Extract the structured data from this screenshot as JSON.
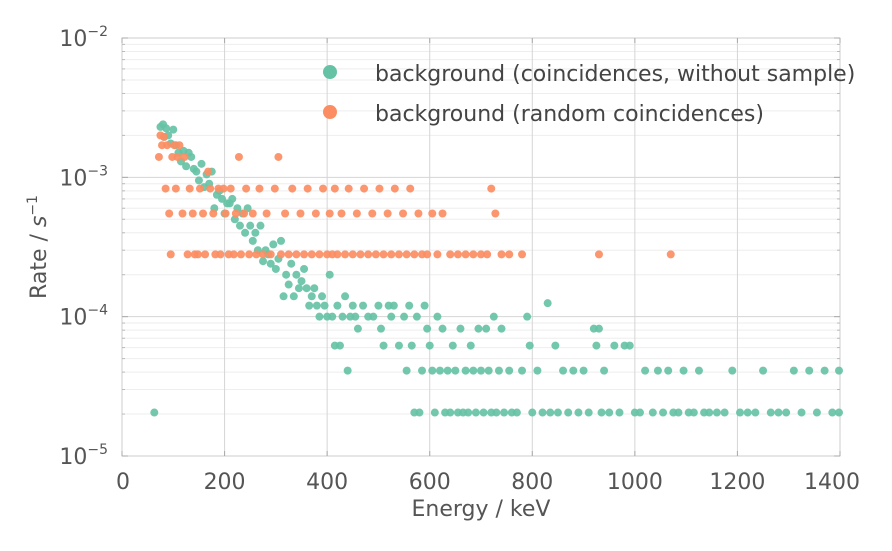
{
  "chart_data": {
    "type": "scatter",
    "xlabel": "Energy / keV",
    "ylabel_base": "Rate / ",
    "ylabel_unit": "s",
    "ylabel_exp": "−1",
    "xlim": [
      0,
      1400
    ],
    "ylim": [
      1e-05,
      0.01
    ],
    "yscale": "log",
    "grid": true,
    "legend_position": "top-right",
    "x_ticks": [
      0,
      200,
      400,
      600,
      800,
      1000,
      1200,
      1400
    ],
    "y_ticks": [
      {
        "value": 0.01,
        "base": "10",
        "exp": "−2"
      },
      {
        "value": 0.001,
        "base": "10",
        "exp": "−3"
      },
      {
        "value": 0.0001,
        "base": "10",
        "exp": "−4"
      },
      {
        "value": 1e-05,
        "base": "10",
        "exp": "−5"
      }
    ],
    "series": [
      {
        "name": "background (coincidences, without sample)",
        "color": "#66c2a5",
        "points": [
          [
            63,
            2.05e-05
          ],
          [
            75,
            0.0023
          ],
          [
            80,
            0.0024
          ],
          [
            82,
            0.00195
          ],
          [
            86,
            0.00225
          ],
          [
            90,
            0.002
          ],
          [
            95,
            0.00175
          ],
          [
            100,
            0.0022
          ],
          [
            105,
            0.0017
          ],
          [
            110,
            0.0015
          ],
          [
            115,
            0.0013
          ],
          [
            120,
            0.00155
          ],
          [
            125,
            0.0012
          ],
          [
            130,
            0.0015
          ],
          [
            135,
            0.0014
          ],
          [
            140,
            0.00115
          ],
          [
            145,
            0.0011
          ],
          [
            150,
            0.00095
          ],
          [
            155,
            0.00125
          ],
          [
            160,
            0.00085
          ],
          [
            165,
            0.00105
          ],
          [
            170,
            0.0009
          ],
          [
            175,
            0.0011
          ],
          [
            180,
            0.0006
          ],
          [
            185,
            0.00075
          ],
          [
            190,
            0.0008
          ],
          [
            195,
            0.0007
          ],
          [
            200,
            0.00055
          ],
          [
            205,
            0.00065
          ],
          [
            210,
            0.00065
          ],
          [
            215,
            0.0007
          ],
          [
            220,
            0.0005
          ],
          [
            225,
            0.0006
          ],
          [
            230,
            0.00045
          ],
          [
            235,
            0.00055
          ],
          [
            240,
            0.0004
          ],
          [
            245,
            0.0006
          ],
          [
            250,
            0.00045
          ],
          [
            255,
            0.00035
          ],
          [
            260,
            0.0004
          ],
          [
            265,
            0.0003
          ],
          [
            270,
            0.00045
          ],
          [
            275,
            0.00025
          ],
          [
            280,
            0.0003
          ],
          [
            285,
            0.00028
          ],
          [
            290,
            0.00024
          ],
          [
            295,
            0.00033
          ],
          [
            300,
            0.00022
          ],
          [
            305,
            0.00026
          ],
          [
            310,
            0.00035
          ],
          [
            315,
            0.00014
          ],
          [
            320,
            0.0002
          ],
          [
            325,
            0.00017
          ],
          [
            330,
            0.00024
          ],
          [
            335,
            0.00014
          ],
          [
            340,
            0.0002
          ],
          [
            345,
            0.00016
          ],
          [
            350,
            0.00018
          ],
          [
            355,
            0.00022
          ],
          [
            360,
            0.00016
          ],
          [
            365,
            0.00012
          ],
          [
            370,
            0.00014
          ],
          [
            375,
            0.00016
          ],
          [
            380,
            0.00012
          ],
          [
            385,
            0.0001
          ],
          [
            390,
            0.00014
          ],
          [
            395,
            0.00012
          ],
          [
            400,
            0.0001
          ],
          [
            405,
            0.0002
          ],
          [
            410,
            0.0001
          ],
          [
            415,
            6.2e-05
          ],
          [
            420,
            0.00012
          ],
          [
            425,
            6.2e-05
          ],
          [
            430,
            0.0001
          ],
          [
            435,
            0.00014
          ],
          [
            440,
            4.1e-05
          ],
          [
            445,
            0.0001
          ],
          [
            450,
            0.00012
          ],
          [
            455,
            0.0001
          ],
          [
            460,
            8.2e-05
          ],
          [
            470,
            0.00012
          ],
          [
            480,
            0.0001
          ],
          [
            490,
            0.0001
          ],
          [
            500,
            0.00012
          ],
          [
            505,
            8.2e-05
          ],
          [
            510,
            6.2e-05
          ],
          [
            520,
            0.00012
          ],
          [
            525,
            0.0001
          ],
          [
            530,
            0.00012
          ],
          [
            540,
            6.2e-05
          ],
          [
            550,
            0.0001
          ],
          [
            555,
            4.1e-05
          ],
          [
            560,
            0.00012
          ],
          [
            565,
            6.2e-05
          ],
          [
            570,
            2.05e-05
          ],
          [
            575,
            0.0001
          ],
          [
            580,
            2.05e-05
          ],
          [
            585,
            4.1e-05
          ],
          [
            590,
            0.00012
          ],
          [
            595,
            8.2e-05
          ],
          [
            600,
            6.2e-05
          ],
          [
            605,
            4.1e-05
          ],
          [
            610,
            2.05e-05
          ],
          [
            615,
            0.0001
          ],
          [
            620,
            4.1e-05
          ],
          [
            625,
            8.2e-05
          ],
          [
            630,
            2.05e-05
          ],
          [
            635,
            4.1e-05
          ],
          [
            640,
            2.05e-05
          ],
          [
            645,
            6.2e-05
          ],
          [
            650,
            4.1e-05
          ],
          [
            655,
            2.05e-05
          ],
          [
            660,
            8.2e-05
          ],
          [
            665,
            2.05e-05
          ],
          [
            670,
            4.1e-05
          ],
          [
            675,
            2.05e-05
          ],
          [
            680,
            6.2e-05
          ],
          [
            685,
            4.1e-05
          ],
          [
            690,
            2.05e-05
          ],
          [
            695,
            8.2e-05
          ],
          [
            700,
            4.1e-05
          ],
          [
            705,
            2.05e-05
          ],
          [
            710,
            8.2e-05
          ],
          [
            715,
            4.1e-05
          ],
          [
            720,
            2.05e-05
          ],
          [
            725,
            0.0001
          ],
          [
            730,
            2.05e-05
          ],
          [
            735,
            4.1e-05
          ],
          [
            740,
            8.2e-05
          ],
          [
            745,
            2.05e-05
          ],
          [
            755,
            4.1e-05
          ],
          [
            760,
            2.05e-05
          ],
          [
            770,
            2.05e-05
          ],
          [
            780,
            4.1e-05
          ],
          [
            790,
            0.0001
          ],
          [
            795,
            6.2e-05
          ],
          [
            800,
            2.05e-05
          ],
          [
            810,
            4.1e-05
          ],
          [
            820,
            2.05e-05
          ],
          [
            830,
            0.000125
          ],
          [
            835,
            2.05e-05
          ],
          [
            845,
            6.2e-05
          ],
          [
            850,
            2.05e-05
          ],
          [
            860,
            4.1e-05
          ],
          [
            870,
            2.05e-05
          ],
          [
            880,
            4.1e-05
          ],
          [
            890,
            2.05e-05
          ],
          [
            900,
            4.1e-05
          ],
          [
            910,
            2.05e-05
          ],
          [
            920,
            8.2e-05
          ],
          [
            925,
            6.2e-05
          ],
          [
            930,
            8.2e-05
          ],
          [
            935,
            2.05e-05
          ],
          [
            940,
            4.1e-05
          ],
          [
            950,
            2.05e-05
          ],
          [
            960,
            6.2e-05
          ],
          [
            970,
            2.05e-05
          ],
          [
            980,
            6.2e-05
          ],
          [
            990,
            6.2e-05
          ],
          [
            1000,
            2.05e-05
          ],
          [
            1010,
            2.05e-05
          ],
          [
            1020,
            4.1e-05
          ],
          [
            1035,
            2.05e-05
          ],
          [
            1045,
            4.1e-05
          ],
          [
            1055,
            2.05e-05
          ],
          [
            1065,
            4.1e-05
          ],
          [
            1075,
            2.05e-05
          ],
          [
            1085,
            2.05e-05
          ],
          [
            1095,
            4.1e-05
          ],
          [
            1105,
            2.05e-05
          ],
          [
            1115,
            2.05e-05
          ],
          [
            1125,
            4.1e-05
          ],
          [
            1135,
            2.05e-05
          ],
          [
            1145,
            2.05e-05
          ],
          [
            1160,
            2.05e-05
          ],
          [
            1175,
            2.05e-05
          ],
          [
            1190,
            4.1e-05
          ],
          [
            1205,
            2.05e-05
          ],
          [
            1220,
            2.05e-05
          ],
          [
            1235,
            2.05e-05
          ],
          [
            1250,
            4.1e-05
          ],
          [
            1265,
            2.05e-05
          ],
          [
            1280,
            2.05e-05
          ],
          [
            1295,
            2.05e-05
          ],
          [
            1310,
            4.1e-05
          ],
          [
            1325,
            2.05e-05
          ],
          [
            1340,
            4.1e-05
          ],
          [
            1355,
            2.05e-05
          ],
          [
            1370,
            4.1e-05
          ],
          [
            1385,
            2.05e-05
          ],
          [
            1400,
            4.1e-05
          ],
          [
            1400,
            2.05e-05
          ]
        ]
      },
      {
        "name": "background (random coincidences)",
        "color": "#fc8d62",
        "points": [
          [
            72,
            0.0014
          ],
          [
            75,
            0.002
          ],
          [
            78,
            0.0017
          ],
          [
            82,
            0.00195
          ],
          [
            85,
            0.00083
          ],
          [
            88,
            0.0017
          ],
          [
            92,
            0.00055
          ],
          [
            95,
            0.00028
          ],
          [
            98,
            0.0014
          ],
          [
            102,
            0.0017
          ],
          [
            105,
            0.00083
          ],
          [
            108,
            0.0014
          ],
          [
            112,
            0.0017
          ],
          [
            118,
            0.00055
          ],
          [
            122,
            0.0014
          ],
          [
            128,
            0.00028
          ],
          [
            132,
            0.00083
          ],
          [
            138,
            0.00055
          ],
          [
            142,
            0.00028
          ],
          [
            148,
            0.00028
          ],
          [
            152,
            0.00083
          ],
          [
            158,
            0.00055
          ],
          [
            162,
            0.00028
          ],
          [
            168,
            0.0011
          ],
          [
            172,
            0.00083
          ],
          [
            178,
            0.00055
          ],
          [
            182,
            0.00028
          ],
          [
            188,
            0.00083
          ],
          [
            192,
            0.00028
          ],
          [
            198,
            0.00083
          ],
          [
            202,
            0.00055
          ],
          [
            208,
            0.00028
          ],
          [
            212,
            0.00083
          ],
          [
            218,
            0.00028
          ],
          [
            222,
            0.00055
          ],
          [
            228,
            0.0014
          ],
          [
            232,
            0.00028
          ],
          [
            238,
            0.00055
          ],
          [
            242,
            0.00083
          ],
          [
            248,
            0.00028
          ],
          [
            255,
            0.00055
          ],
          [
            262,
            0.00028
          ],
          [
            268,
            0.00083
          ],
          [
            275,
            0.00028
          ],
          [
            282,
            0.00055
          ],
          [
            290,
            0.00028
          ],
          [
            298,
            0.00083
          ],
          [
            305,
            0.0014
          ],
          [
            310,
            0.00028
          ],
          [
            318,
            0.00055
          ],
          [
            325,
            0.00028
          ],
          [
            332,
            0.00083
          ],
          [
            340,
            0.00028
          ],
          [
            348,
            0.00055
          ],
          [
            355,
            0.00028
          ],
          [
            362,
            0.00083
          ],
          [
            370,
            0.00028
          ],
          [
            378,
            0.00055
          ],
          [
            385,
            0.00028
          ],
          [
            392,
            0.00083
          ],
          [
            400,
            0.00028
          ],
          [
            405,
            0.00055
          ],
          [
            410,
            0.00028
          ],
          [
            415,
            0.00083
          ],
          [
            420,
            0.00028
          ],
          [
            428,
            0.00055
          ],
          [
            435,
            0.00028
          ],
          [
            442,
            0.00083
          ],
          [
            450,
            0.00028
          ],
          [
            458,
            0.00055
          ],
          [
            465,
            0.00028
          ],
          [
            472,
            0.00083
          ],
          [
            480,
            0.00028
          ],
          [
            488,
            0.00055
          ],
          [
            495,
            0.00028
          ],
          [
            502,
            0.00083
          ],
          [
            510,
            0.00028
          ],
          [
            518,
            0.00055
          ],
          [
            525,
            0.00028
          ],
          [
            532,
            0.00083
          ],
          [
            540,
            0.00028
          ],
          [
            548,
            0.00055
          ],
          [
            555,
            0.00028
          ],
          [
            562,
            0.00083
          ],
          [
            570,
            0.00028
          ],
          [
            578,
            0.00055
          ],
          [
            585,
            0.00028
          ],
          [
            595,
            0.00028
          ],
          [
            605,
            0.00055
          ],
          [
            615,
            0.00028
          ],
          [
            625,
            0.00055
          ],
          [
            640,
            0.00028
          ],
          [
            655,
            0.00028
          ],
          [
            670,
            0.00028
          ],
          [
            685,
            0.00028
          ],
          [
            700,
            0.00028
          ],
          [
            712,
            0.00028
          ],
          [
            720,
            0.00083
          ],
          [
            728,
            0.00055
          ],
          [
            740,
            0.00028
          ],
          [
            755,
            0.00028
          ],
          [
            780,
            0.00028
          ],
          [
            930,
            0.00028
          ],
          [
            1070,
            0.00028
          ]
        ]
      }
    ]
  }
}
